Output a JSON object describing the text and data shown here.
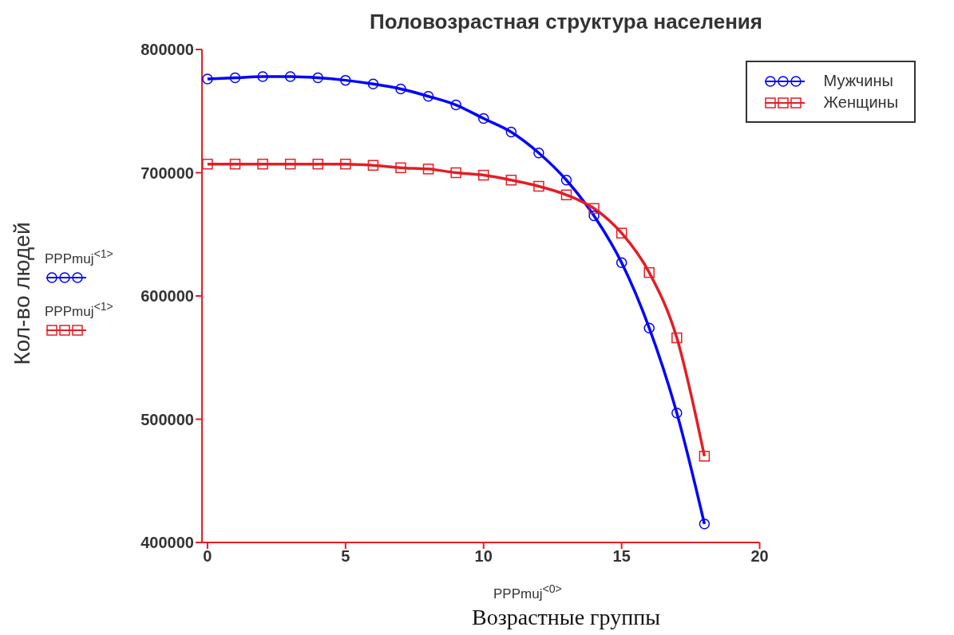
{
  "chart_data": {
    "type": "line",
    "title": "Половозрастная структура населения",
    "xlabel": "Возрастные группы",
    "ylabel": "Кол-во людей",
    "annotations": [
      "PPPmuj$^{<1>}$",
      "PPPmuj$^{<1>}$",
      "PPPmuj$^{<0>}$"
    ],
    "x": [
      0,
      1,
      2,
      3,
      4,
      5,
      6,
      7,
      8,
      9,
      10,
      11,
      12,
      13,
      14,
      15,
      16,
      17,
      18
    ],
    "series": [
      {
        "name": "Мужчины",
        "color": "#0000ff",
        "marker": "circle",
        "values": [
          776000,
          777000,
          778000,
          778000,
          777000,
          775000,
          772000,
          768000,
          762000,
          755000,
          744000,
          733000,
          716000,
          694000,
          665000,
          627000,
          574000,
          505000,
          415000
        ]
      },
      {
        "name": "Женщины",
        "color": "#e31e24",
        "marker": "square",
        "values": [
          707000,
          707000,
          707000,
          707000,
          707000,
          707000,
          706000,
          704000,
          703000,
          700000,
          698000,
          694000,
          689000,
          682000,
          671000,
          651000,
          619000,
          566000,
          470000
        ]
      }
    ],
    "xlim": [
      -0.2,
      20
    ],
    "xticks": [
      0,
      5,
      10,
      15,
      20
    ],
    "ylim": [
      400000,
      800000
    ],
    "yticks": [
      400000,
      500000,
      600000,
      700000,
      800000
    ],
    "grid": false,
    "legend": "top right",
    "line_style": "solid"
  }
}
